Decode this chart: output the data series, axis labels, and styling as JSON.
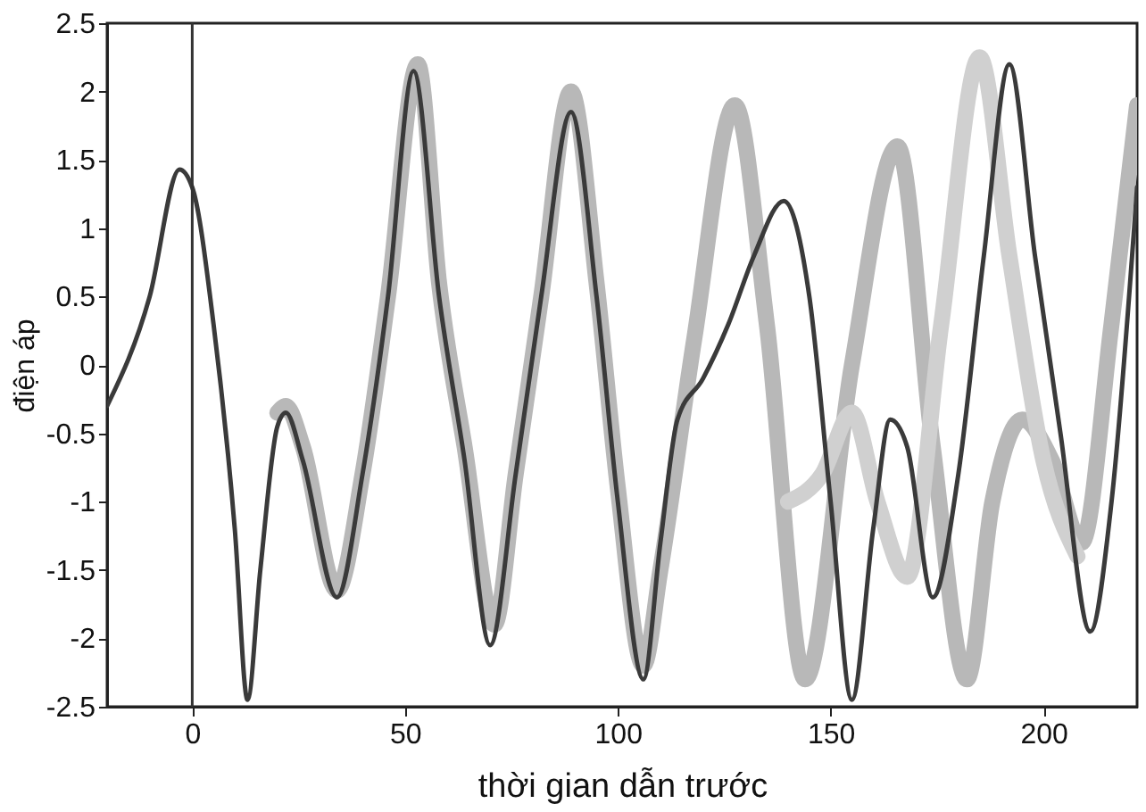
{
  "chart_data": {
    "type": "line",
    "xlabel": "thời gian dẫn trước",
    "ylabel": "điện áp",
    "xlim": [
      -20,
      222
    ],
    "xticks": [
      0,
      50,
      100,
      150,
      200
    ],
    "ylim": [
      -2.5,
      2.5
    ],
    "yticks": [
      -2.5,
      -2,
      -1.5,
      -1,
      -0.5,
      0,
      0.5,
      1,
      1.5,
      2,
      2.5
    ],
    "grid": false,
    "ref_lines": [
      {
        "axis": "x",
        "value": 0,
        "color": "#333333"
      }
    ],
    "series": [
      {
        "color": "#b8b8b8",
        "x": [
          20,
          22,
          26,
          34,
          40,
          46,
          53,
          58,
          64,
          71,
          76,
          82,
          89,
          95,
          100,
          106,
          110,
          118,
          127.5,
          135,
          144,
          155,
          165.7,
          174,
          182,
          188,
          195,
          202,
          209,
          216,
          222
        ],
        "values": [
          -0.35,
          -0.3,
          -0.6,
          -1.65,
          -0.8,
          0.5,
          2.2,
          0.6,
          -0.6,
          -1.9,
          -0.8,
          0.5,
          2.0,
          0.6,
          -0.9,
          -2.2,
          -1.5,
          0.2,
          1.9,
          0.3,
          -2.3,
          0,
          1.6,
          -0.6,
          -2.3,
          -1.0,
          -0.4,
          -0.7,
          -1.3,
          0.3,
          1.9
        ]
      },
      {
        "color": "#d0d0d0",
        "x": [
          140,
          148,
          155,
          161,
          168,
          176,
          185,
          192,
          200,
          208
        ],
        "values": [
          -1.0,
          -0.8,
          -0.35,
          -1.0,
          -1.55,
          0.3,
          2.25,
          0.8,
          -0.7,
          -1.4
        ]
      },
      {
        "color": "#3a3a3a",
        "x": [
          -20,
          -10,
          -3,
          0,
          5,
          10,
          13,
          16,
          20,
          22,
          26,
          34,
          40,
          46,
          52,
          58,
          64,
          70,
          76,
          82,
          89,
          95,
          100,
          106,
          110,
          114,
          120,
          126,
          132,
          139,
          145,
          150,
          155,
          160,
          164,
          168,
          174,
          180,
          186,
          192,
          198,
          204,
          211,
          216,
          222
        ],
        "values": [
          -0.3,
          0.5,
          1.43,
          1.3,
          0.3,
          -1.2,
          -2.45,
          -1.5,
          -0.45,
          -0.35,
          -0.7,
          -1.7,
          -0.8,
          0.5,
          2.15,
          0.5,
          -0.7,
          -2.05,
          -0.8,
          0.5,
          1.85,
          0.5,
          -1.0,
          -2.3,
          -1.3,
          -0.4,
          -0.1,
          0.3,
          0.8,
          1.2,
          0.5,
          -1.0,
          -2.45,
          -1.2,
          -0.4,
          -0.6,
          -1.7,
          -0.8,
          0.8,
          2.2,
          0.8,
          -0.5,
          -1.95,
          -1.0,
          1.3
        ]
      }
    ]
  }
}
